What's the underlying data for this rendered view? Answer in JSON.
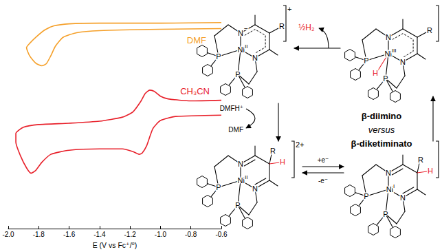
{
  "chart_data": {
    "type": "line",
    "xlabel": "E (V vs Fc⁺/⁰)",
    "xlim": [
      -2,
      -0.6
    ],
    "xticks": [
      {
        "value": -2,
        "label": "-2.0"
      },
      -1.8,
      -1.6,
      -1.4,
      -1.2,
      {
        "value": -1,
        "label": "-1.0"
      },
      -0.8,
      -0.6
    ],
    "ylim": [
      0,
      322
    ],
    "grid": false,
    "tick_labels": "x",
    "series": [
      {
        "name": "DMF",
        "color": "#f5a02a",
        "x": [
          -0.6,
          -1.0,
          -1.4,
          -1.6,
          -1.7,
          -1.76,
          -1.82,
          -1.86,
          -1.88,
          -1.86,
          -1.82,
          -1.78,
          -1.75,
          -1.72,
          -1.69,
          -1.64,
          -1.55,
          -1.4,
          -1.0,
          -0.6
        ],
        "values": [
          305,
          304,
          304,
          303,
          300,
          294,
          283,
          274,
          268,
          256,
          245,
          241,
          244,
          256,
          270,
          283,
          290,
          293,
          295,
          296
        ]
      },
      {
        "name": "CH₃CN",
        "color": "#e8212b",
        "x": [
          -0.6,
          -0.8,
          -0.95,
          -1.0,
          -1.04,
          -1.07,
          -1.1,
          -1.13,
          -1.18,
          -1.25,
          -1.4,
          -1.6,
          -1.8,
          -1.9,
          -1.95,
          -1.95,
          -1.92,
          -1.88,
          -1.85,
          -1.82,
          -1.78,
          -1.72,
          -1.6,
          -1.4,
          -1.25,
          -1.18,
          -1.14,
          -1.12,
          -1.09,
          -1.05,
          -1.0,
          -0.9,
          -0.6
        ],
        "values": [
          190,
          189,
          192,
          196,
          203,
          205,
          200,
          188,
          173,
          165,
          159,
          156,
          154,
          150,
          141,
          128,
          108,
          90,
          82,
          86,
          98,
          110,
          116,
          118,
          118,
          114,
          110,
          112,
          123,
          148,
          160,
          166,
          168
        ]
      }
    ]
  },
  "scheme": {
    "caption": [
      "β-diimino",
      "versus",
      "β-diketiminato"
    ],
    "complexes": [
      {
        "charge": "+",
        "metal": "Ni",
        "oxidation": "II",
        "donors": [
          "N",
          "N",
          "P",
          "P"
        ],
        "substituent": "R",
        "ligand_charge": "−"
      },
      {
        "metal": "Ni",
        "oxidation": "III",
        "donors": [
          "N",
          "N",
          "P",
          "P"
        ],
        "substituent": "R",
        "metal_hydride": "H"
      },
      {
        "charge": "2+",
        "metal": "Ni",
        "oxidation": "II",
        "donors": [
          "N",
          "N",
          "P",
          "P"
        ],
        "substituent": "R",
        "carbon_hydrogen": "H"
      },
      {
        "metal": "Ni",
        "oxidation": "I",
        "donors": [
          "N",
          "N",
          "P",
          "P"
        ],
        "substituent": "R",
        "carbon_hydrogen": "H"
      }
    ],
    "hydrogen_release": "½H₂",
    "protonation": [
      "DMFH⁺",
      "DMF"
    ],
    "electron_transfer": [
      "+e⁻",
      "-e⁻"
    ]
  }
}
